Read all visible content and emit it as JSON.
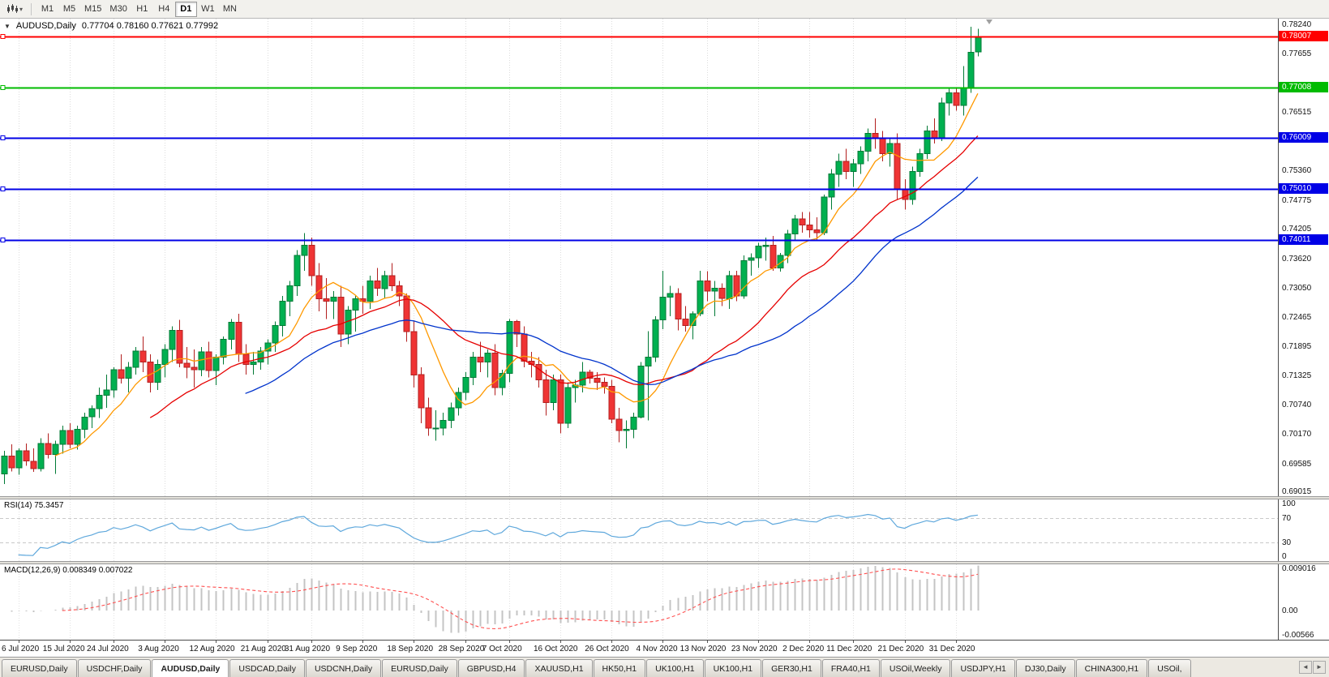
{
  "toolbar": {
    "timeframes": [
      "M1",
      "M5",
      "M15",
      "M30",
      "H1",
      "H4",
      "D1",
      "W1",
      "MN"
    ],
    "active_timeframe": "D1"
  },
  "chart": {
    "title": "AUDUSD,Daily",
    "ohlc": "0.77704 0.78160 0.77621 0.77992",
    "one_click_arrow": "▼"
  },
  "price_axis": {
    "ticks": [
      "0.78240",
      "0.77655",
      "0.76515",
      "0.75360",
      "0.74775",
      "0.74205",
      "0.73620",
      "0.73050",
      "0.72465",
      "0.71895",
      "0.71325",
      "0.70740",
      "0.70170",
      "0.69585",
      "0.69015"
    ]
  },
  "hlines": [
    {
      "value": 0.78007,
      "label": "0.78007",
      "color": "#FF0000"
    },
    {
      "value": 0.77008,
      "label": "0.77008",
      "color": "#00BB00"
    },
    {
      "value": 0.76009,
      "label": "0.76009",
      "color": "#0000E6"
    },
    {
      "value": 0.7501,
      "label": "0.75010",
      "color": "#0000E6"
    },
    {
      "value": 0.74011,
      "label": "0.74011",
      "color": "#0000E6"
    }
  ],
  "rsi": {
    "name_label": "RSI(14) 75.3457",
    "period": 14,
    "range": [
      0,
      100
    ],
    "levels": [
      70,
      30
    ],
    "line_color": "#5FA8DC",
    "ticks": [
      {
        "value": 100,
        "label": "100"
      },
      {
        "value": 70,
        "label": "70"
      },
      {
        "value": 30,
        "label": "30"
      },
      {
        "value": 0,
        "label": "0"
      }
    ]
  },
  "macd": {
    "name_label": "MACD(12,26,9) 0.008349 0.007022",
    "fast": 12,
    "slow": 26,
    "signal": 9,
    "range": [
      -0.00566,
      0.009016
    ],
    "hist_color": "#C4C4C4",
    "signal_color": "#FF5050",
    "ticks": [
      {
        "value": 0.009016,
        "label": "0.009016"
      },
      {
        "value": 0,
        "label": "0.00"
      },
      {
        "value": -0.00566,
        "label": "-0.00566"
      }
    ]
  },
  "tabs": {
    "items": [
      "EURUSD,Daily",
      "USDCHF,Daily",
      "AUDUSD,Daily",
      "USDCAD,Daily",
      "USDCNH,Daily",
      "EURUSD,Daily",
      "GBPUSD,H4",
      "XAUUSD,H1",
      "HK50,H1",
      "UK100,H1",
      "UK100,H1",
      "GER30,H1",
      "FRA40,H1",
      "USOil,Weekly",
      "USDJPY,H1",
      "DJ30,Daily",
      "CHINA300,H1",
      "USOil,"
    ],
    "active_index": 2,
    "scroll_left": "◄",
    "scroll_right": "►"
  },
  "chart_data": {
    "type": "candlestick",
    "symbol": "AUDUSD",
    "timeframe": "Daily",
    "ylim": [
      0.6896,
      0.7836
    ],
    "up_color": "#00B050",
    "up_border": "#007A36",
    "down_color": "#EF3434",
    "down_border": "#B31F1F",
    "ma": [
      {
        "period": 8,
        "color": "#FF9900"
      },
      {
        "period": 21,
        "color": "#E60000"
      },
      {
        "period": 34,
        "color": "#0033CC"
      }
    ],
    "date_labels": [
      "6 Jul 2020",
      "15 Jul 2020",
      "24 Jul 2020",
      "3 Aug 2020",
      "12 Aug 2020",
      "21 Aug 2020",
      "31 Aug 2020",
      "9 Sep 2020",
      "18 Sep 2020",
      "28 Sep 2020",
      "7 Oct 2020",
      "16 Oct 2020",
      "26 Oct 2020",
      "4 Nov 2020",
      "13 Nov 2020",
      "23 Nov 2020",
      "2 Dec 2020",
      "11 Dec 2020",
      "21 Dec 2020",
      "31 Dec 2020"
    ],
    "date_label_indices": [
      2,
      9,
      15,
      22,
      29,
      36,
      42,
      49,
      56,
      63,
      69,
      76,
      83,
      90,
      96,
      103,
      110,
      116,
      123,
      130
    ],
    "candles": [
      [
        0.694,
        0.6985,
        0.692,
        0.6975
      ],
      [
        0.6975,
        0.6998,
        0.6945,
        0.6952
      ],
      [
        0.6952,
        0.699,
        0.6938,
        0.6985
      ],
      [
        0.6985,
        0.7,
        0.6956,
        0.6965
      ],
      [
        0.6965,
        0.699,
        0.6944,
        0.695
      ],
      [
        0.695,
        0.701,
        0.6945,
        0.7
      ],
      [
        0.7,
        0.702,
        0.697,
        0.6978
      ],
      [
        0.6978,
        0.7005,
        0.694,
        0.6998
      ],
      [
        0.6998,
        0.7035,
        0.698,
        0.7025
      ],
      [
        0.7025,
        0.704,
        0.699,
        0.6998
      ],
      [
        0.6998,
        0.7035,
        0.6988,
        0.7028
      ],
      [
        0.7028,
        0.706,
        0.701,
        0.7052
      ],
      [
        0.7052,
        0.7075,
        0.703,
        0.7068
      ],
      [
        0.7068,
        0.711,
        0.705,
        0.7095
      ],
      [
        0.7095,
        0.7135,
        0.707,
        0.7105
      ],
      [
        0.7105,
        0.715,
        0.709,
        0.7145
      ],
      [
        0.7145,
        0.7175,
        0.7118,
        0.7128
      ],
      [
        0.7128,
        0.716,
        0.71,
        0.715
      ],
      [
        0.715,
        0.719,
        0.7135,
        0.7182
      ],
      [
        0.7182,
        0.721,
        0.714,
        0.716
      ],
      [
        0.716,
        0.7175,
        0.71,
        0.712
      ],
      [
        0.712,
        0.7165,
        0.7105,
        0.7155
      ],
      [
        0.7155,
        0.7195,
        0.713,
        0.7185
      ],
      [
        0.7185,
        0.723,
        0.716,
        0.7222
      ],
      [
        0.7222,
        0.7243,
        0.715,
        0.7158
      ],
      [
        0.7158,
        0.719,
        0.7128,
        0.715
      ],
      [
        0.715,
        0.7185,
        0.711,
        0.7145
      ],
      [
        0.7145,
        0.719,
        0.7132,
        0.718
      ],
      [
        0.718,
        0.72,
        0.713,
        0.7143
      ],
      [
        0.7143,
        0.7175,
        0.7115,
        0.717
      ],
      [
        0.717,
        0.721,
        0.7155,
        0.7205
      ],
      [
        0.7205,
        0.7245,
        0.7185,
        0.7238
      ],
      [
        0.7238,
        0.7255,
        0.716,
        0.7175
      ],
      [
        0.7175,
        0.7195,
        0.7135,
        0.7155
      ],
      [
        0.7155,
        0.718,
        0.7135,
        0.716
      ],
      [
        0.716,
        0.719,
        0.7145,
        0.7182
      ],
      [
        0.7182,
        0.7205,
        0.7155,
        0.7198
      ],
      [
        0.7198,
        0.724,
        0.718,
        0.7232
      ],
      [
        0.7232,
        0.729,
        0.721,
        0.728
      ],
      [
        0.728,
        0.732,
        0.725,
        0.731
      ],
      [
        0.731,
        0.738,
        0.729,
        0.737
      ],
      [
        0.737,
        0.7414,
        0.734,
        0.739
      ],
      [
        0.739,
        0.7405,
        0.731,
        0.733
      ],
      [
        0.733,
        0.7355,
        0.726,
        0.7285
      ],
      [
        0.7285,
        0.7325,
        0.7245,
        0.728
      ],
      [
        0.728,
        0.73,
        0.7245,
        0.7288
      ],
      [
        0.7288,
        0.731,
        0.719,
        0.7215
      ],
      [
        0.7215,
        0.727,
        0.7195,
        0.7262
      ],
      [
        0.7262,
        0.729,
        0.722,
        0.7285
      ],
      [
        0.7285,
        0.731,
        0.7255,
        0.728
      ],
      [
        0.728,
        0.733,
        0.7265,
        0.732
      ],
      [
        0.732,
        0.7345,
        0.729,
        0.7305
      ],
      [
        0.7305,
        0.734,
        0.7285,
        0.733
      ],
      [
        0.733,
        0.7355,
        0.73,
        0.731
      ],
      [
        0.731,
        0.732,
        0.727,
        0.729
      ],
      [
        0.729,
        0.7295,
        0.72,
        0.722
      ],
      [
        0.722,
        0.724,
        0.711,
        0.7135
      ],
      [
        0.7135,
        0.715,
        0.704,
        0.707
      ],
      [
        0.707,
        0.709,
        0.7015,
        0.703
      ],
      [
        0.703,
        0.7065,
        0.7005,
        0.703
      ],
      [
        0.703,
        0.706,
        0.7016,
        0.7045
      ],
      [
        0.7045,
        0.708,
        0.703,
        0.707
      ],
      [
        0.707,
        0.711,
        0.7055,
        0.71
      ],
      [
        0.71,
        0.714,
        0.7085,
        0.713
      ],
      [
        0.713,
        0.718,
        0.7115,
        0.717
      ],
      [
        0.717,
        0.72,
        0.714,
        0.716
      ],
      [
        0.716,
        0.7185,
        0.713,
        0.7178
      ],
      [
        0.7178,
        0.7195,
        0.7095,
        0.711
      ],
      [
        0.711,
        0.7145,
        0.7095,
        0.7138
      ],
      [
        0.7138,
        0.7245,
        0.712,
        0.724
      ],
      [
        0.724,
        0.7243,
        0.719,
        0.7215
      ],
      [
        0.7215,
        0.723,
        0.715,
        0.7162
      ],
      [
        0.7162,
        0.718,
        0.713,
        0.7155
      ],
      [
        0.7155,
        0.717,
        0.711,
        0.7125
      ],
      [
        0.7125,
        0.7145,
        0.7055,
        0.708
      ],
      [
        0.708,
        0.7135,
        0.7065,
        0.7125
      ],
      [
        0.7125,
        0.7135,
        0.702,
        0.704
      ],
      [
        0.704,
        0.712,
        0.703,
        0.711
      ],
      [
        0.711,
        0.7125,
        0.708,
        0.7115
      ],
      [
        0.7115,
        0.716,
        0.71,
        0.714
      ],
      [
        0.714,
        0.7145,
        0.7118,
        0.7128
      ],
      [
        0.7128,
        0.714,
        0.7105,
        0.712
      ],
      [
        0.712,
        0.713,
        0.7098,
        0.7112
      ],
      [
        0.7112,
        0.7125,
        0.704,
        0.7048
      ],
      [
        0.7048,
        0.707,
        0.7002,
        0.7025
      ],
      [
        0.7025,
        0.7045,
        0.699,
        0.7028
      ],
      [
        0.7028,
        0.706,
        0.701,
        0.7052
      ],
      [
        0.7052,
        0.716,
        0.7049,
        0.7152
      ],
      [
        0.7152,
        0.7221,
        0.7045,
        0.717
      ],
      [
        0.717,
        0.725,
        0.716,
        0.7243
      ],
      [
        0.7243,
        0.734,
        0.7225,
        0.7288
      ],
      [
        0.7288,
        0.731,
        0.725,
        0.7295
      ],
      [
        0.7295,
        0.7305,
        0.7222,
        0.7245
      ],
      [
        0.7245,
        0.727,
        0.722,
        0.7232
      ],
      [
        0.7232,
        0.726,
        0.7205,
        0.7255
      ],
      [
        0.7255,
        0.734,
        0.725,
        0.732
      ],
      [
        0.732,
        0.7339,
        0.728,
        0.73
      ],
      [
        0.73,
        0.732,
        0.725,
        0.7305
      ],
      [
        0.7305,
        0.7315,
        0.727,
        0.7285
      ],
      [
        0.7285,
        0.734,
        0.7265,
        0.733
      ],
      [
        0.733,
        0.734,
        0.728,
        0.729
      ],
      [
        0.729,
        0.737,
        0.7285,
        0.736
      ],
      [
        0.736,
        0.7374,
        0.733,
        0.7365
      ],
      [
        0.7365,
        0.7395,
        0.7345,
        0.7388
      ],
      [
        0.7388,
        0.7405,
        0.736,
        0.739
      ],
      [
        0.739,
        0.7408,
        0.734,
        0.7345
      ],
      [
        0.7345,
        0.7375,
        0.7338,
        0.737
      ],
      [
        0.737,
        0.742,
        0.7355,
        0.7412
      ],
      [
        0.7412,
        0.745,
        0.74,
        0.7442
      ],
      [
        0.7442,
        0.7455,
        0.7415,
        0.743
      ],
      [
        0.743,
        0.7455,
        0.7405,
        0.742
      ],
      [
        0.742,
        0.7445,
        0.74,
        0.7415
      ],
      [
        0.7415,
        0.749,
        0.741,
        0.7485
      ],
      [
        0.7485,
        0.754,
        0.746,
        0.753
      ],
      [
        0.753,
        0.757,
        0.7505,
        0.7555
      ],
      [
        0.7555,
        0.758,
        0.752,
        0.7535
      ],
      [
        0.7535,
        0.756,
        0.7505,
        0.755
      ],
      [
        0.755,
        0.7585,
        0.753,
        0.7575
      ],
      [
        0.7575,
        0.762,
        0.7555,
        0.761
      ],
      [
        0.761,
        0.764,
        0.758,
        0.76
      ],
      [
        0.76,
        0.7615,
        0.7555,
        0.757
      ],
      [
        0.757,
        0.76,
        0.7545,
        0.759
      ],
      [
        0.759,
        0.761,
        0.748,
        0.75
      ],
      [
        0.75,
        0.752,
        0.746,
        0.748
      ],
      [
        0.748,
        0.7545,
        0.747,
        0.7535
      ],
      [
        0.7535,
        0.758,
        0.7525,
        0.757
      ],
      [
        0.757,
        0.7625,
        0.756,
        0.7615
      ],
      [
        0.7615,
        0.764,
        0.759,
        0.76
      ],
      [
        0.76,
        0.768,
        0.7595,
        0.767
      ],
      [
        0.767,
        0.77,
        0.7645,
        0.769
      ],
      [
        0.769,
        0.77,
        0.7655,
        0.7665
      ],
      [
        0.7665,
        0.7743,
        0.7645,
        0.77
      ],
      [
        0.77,
        0.782,
        0.769,
        0.777
      ],
      [
        0.77704,
        0.7816,
        0.77621,
        0.77992
      ]
    ]
  }
}
